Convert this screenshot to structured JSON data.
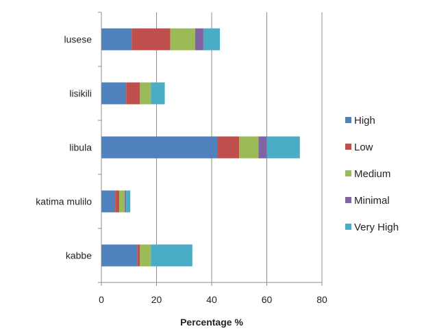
{
  "chart_data": {
    "type": "bar",
    "orientation": "horizontal",
    "stacked": true,
    "categories": [
      "lusese",
      "lisikili",
      "libula",
      "katima mulilo",
      "kabbe"
    ],
    "series": [
      {
        "name": "High",
        "color": "#4f81bd",
        "values": [
          11,
          9,
          42,
          5,
          13
        ]
      },
      {
        "name": "Low",
        "color": "#c0504d",
        "values": [
          14,
          5,
          8,
          1.5,
          1
        ]
      },
      {
        "name": "Medium",
        "color": "#9bbb59",
        "values": [
          9,
          4,
          7,
          2,
          4
        ]
      },
      {
        "name": "Minimal",
        "color": "#8064a2",
        "values": [
          3,
          0,
          3,
          0.5,
          0
        ]
      },
      {
        "name": "Very High",
        "color": "#4bacc6",
        "values": [
          6,
          5,
          12,
          1.5,
          15
        ]
      }
    ],
    "xlabel": "Percentage %",
    "ylabel": "",
    "xlim": [
      0,
      80
    ],
    "xticks": [
      0,
      20,
      40,
      60,
      80
    ],
    "grid": true,
    "legend_position": "right"
  }
}
